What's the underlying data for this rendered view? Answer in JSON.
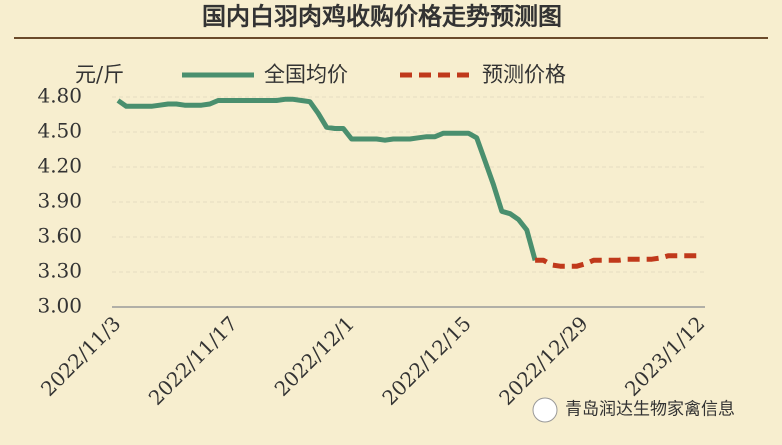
{
  "chart_data": {
    "type": "line",
    "title": "国内白羽肉鸡收购价格走势预测图",
    "y_label": "元/斤",
    "watermark": "青岛润达生物家禽信息",
    "categories": [
      "2022/11/3",
      null,
      null,
      null,
      null,
      null,
      null,
      null,
      null,
      null,
      null,
      null,
      null,
      null,
      "2022/11/17",
      null,
      null,
      null,
      null,
      null,
      null,
      null,
      null,
      null,
      null,
      null,
      null,
      null,
      "2022/12/1",
      null,
      null,
      null,
      null,
      null,
      null,
      null,
      null,
      null,
      null,
      null,
      null,
      null,
      "2022/12/15",
      null,
      null,
      null,
      null,
      null,
      null,
      null,
      null,
      null,
      null,
      null,
      null,
      null,
      "2022/12/29",
      null,
      null,
      null,
      null,
      null,
      null,
      null,
      null,
      null,
      null,
      null,
      null,
      null,
      "2023/1/12"
    ],
    "series": [
      {
        "name": "全国均价",
        "color": "#4a8f6e",
        "dashed": false,
        "values": [
          4.77,
          4.72,
          4.72,
          4.72,
          4.72,
          4.73,
          4.74,
          4.74,
          4.73,
          4.73,
          4.73,
          4.74,
          4.77,
          4.77,
          4.77,
          4.77,
          4.77,
          4.77,
          4.77,
          4.77,
          4.78,
          4.78,
          4.77,
          4.76,
          4.66,
          4.54,
          4.53,
          4.53,
          4.44,
          4.44,
          4.44,
          4.44,
          4.43,
          4.44,
          4.44,
          4.44,
          4.45,
          4.46,
          4.46,
          4.49,
          4.49,
          4.49,
          4.49,
          4.45,
          4.25,
          4.05,
          3.82,
          3.8,
          3.75,
          3.66,
          3.4,
          null,
          null,
          null,
          null,
          null,
          null,
          null,
          null,
          null,
          null,
          null,
          null,
          null,
          null,
          null,
          null,
          null,
          null,
          null,
          null
        ]
      },
      {
        "name": "预测价格",
        "color": "#c0391b",
        "dashed": true,
        "values": [
          null,
          null,
          null,
          null,
          null,
          null,
          null,
          null,
          null,
          null,
          null,
          null,
          null,
          null,
          null,
          null,
          null,
          null,
          null,
          null,
          null,
          null,
          null,
          null,
          null,
          null,
          null,
          null,
          null,
          null,
          null,
          null,
          null,
          null,
          null,
          null,
          null,
          null,
          null,
          null,
          null,
          null,
          null,
          null,
          null,
          null,
          null,
          null,
          null,
          null,
          3.4,
          3.4,
          3.36,
          3.35,
          3.35,
          3.35,
          3.37,
          3.4,
          3.4,
          3.4,
          3.4,
          3.41,
          3.41,
          3.41,
          3.41,
          3.42,
          3.44,
          3.44,
          3.44,
          3.44,
          3.44
        ]
      }
    ],
    "ylim": [
      3.0,
      4.8
    ],
    "yticks": [
      {
        "value": 3.0,
        "label": "3.00"
      },
      {
        "value": 3.3,
        "label": "3.30"
      },
      {
        "value": 3.6,
        "label": "3.60"
      },
      {
        "value": 3.9,
        "label": "3.90"
      },
      {
        "value": 4.2,
        "label": "4.20"
      },
      {
        "value": 4.5,
        "label": "4.50"
      },
      {
        "value": 4.8,
        "label": "4.80"
      }
    ],
    "grid": true
  }
}
